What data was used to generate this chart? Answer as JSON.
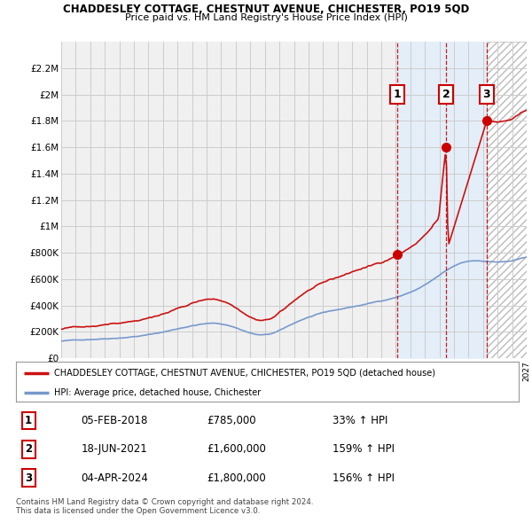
{
  "title": "CHADDESLEY COTTAGE, CHESTNUT AVENUE, CHICHESTER, PO19 5QD",
  "subtitle": "Price paid vs. HM Land Registry's House Price Index (HPI)",
  "background_color": "#ffffff",
  "grid_color": "#cccccc",
  "plot_bg": "#f0f0f0",
  "ylim": [
    0,
    2400000
  ],
  "yticks": [
    0,
    200000,
    400000,
    600000,
    800000,
    1000000,
    1200000,
    1400000,
    1600000,
    1800000,
    2000000,
    2200000
  ],
  "ytick_labels": [
    "£0",
    "£200K",
    "£400K",
    "£600K",
    "£800K",
    "£1M",
    "£1.2M",
    "£1.4M",
    "£1.6M",
    "£1.8M",
    "£2M",
    "£2.2M"
  ],
  "hpi_color": "#7799cc",
  "price_color": "#cc1111",
  "sale_color": "#cc0000",
  "vline_color": "#cc0000",
  "shade_color": "#ddeeff",
  "hatch_color": "#cccccc",
  "transactions": [
    {
      "date_num": 2018.09,
      "price": 785000,
      "label": "1"
    },
    {
      "date_num": 2021.46,
      "price": 1600000,
      "label": "2"
    },
    {
      "date_num": 2024.25,
      "price": 1800000,
      "label": "3"
    }
  ],
  "legend_entries": [
    "CHADDESLEY COTTAGE, CHESTNUT AVENUE, CHICHESTER, PO19 5QD (detached house)",
    "HPI: Average price, detached house, Chichester"
  ],
  "table_rows": [
    [
      "1",
      "05-FEB-2018",
      "£785,000",
      "33% ↑ HPI"
    ],
    [
      "2",
      "18-JUN-2021",
      "£1,600,000",
      "159% ↑ HPI"
    ],
    [
      "3",
      "04-APR-2024",
      "£1,800,000",
      "156% ↑ HPI"
    ]
  ],
  "footer": "Contains HM Land Registry data © Crown copyright and database right 2024.\nThis data is licensed under the Open Government Licence v3.0.",
  "xlim_start": 1995,
  "xlim_end": 2027
}
